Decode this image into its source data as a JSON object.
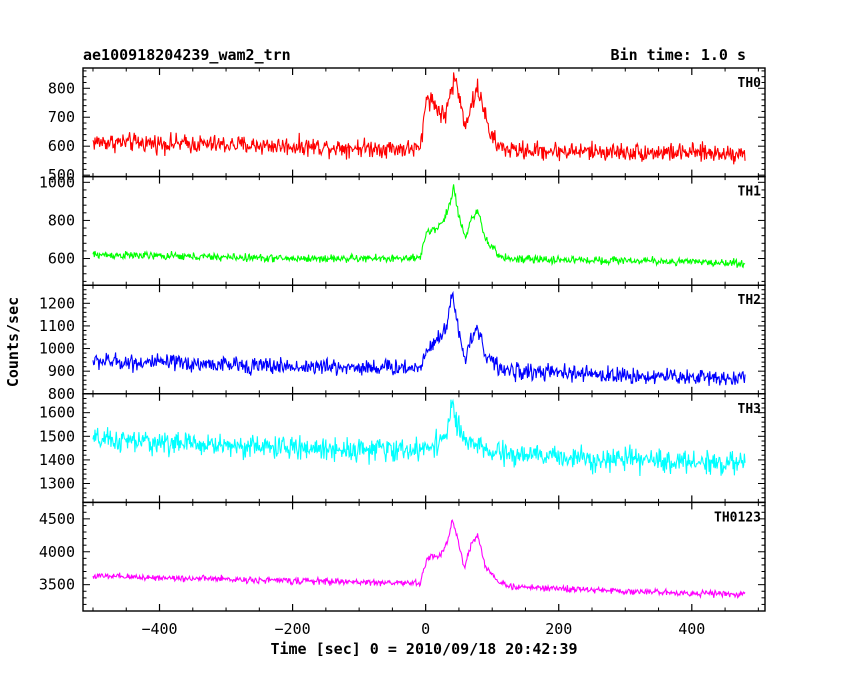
{
  "chart_data": {
    "type": "line",
    "title": "ae100918204239_wam2_trn",
    "bin_time_label": "Bin time: 1.0 s",
    "xlabel": "Time [sec] 0 = 2010/09/18 20:42:39",
    "ylabel": "Counts/sec",
    "xlim": [
      -515,
      510
    ],
    "xticks": [
      -400,
      -200,
      0,
      200,
      400
    ],
    "grid": false,
    "x": {
      "start": -500,
      "end": 480,
      "step": 1
    },
    "panels": [
      {
        "name": "TH0",
        "color": "#ff0000",
        "ylim": [
          495,
          870
        ],
        "yticks": [
          500,
          600,
          700,
          800
        ],
        "ytick_labels": [
          "500",
          "600",
          "700",
          "800"
        ],
        "level_points": [
          [
            -500,
            615
          ],
          [
            -200,
            600
          ],
          [
            0,
            590
          ],
          [
            300,
            580
          ],
          [
            480,
            575
          ]
        ],
        "noise": 28,
        "flare_points": [
          [
            -8,
            0
          ],
          [
            2,
            190
          ],
          [
            15,
            150
          ],
          [
            28,
            110
          ],
          [
            38,
            200
          ],
          [
            44,
            250
          ],
          [
            52,
            160
          ],
          [
            60,
            90
          ],
          [
            68,
            150
          ],
          [
            78,
            210
          ],
          [
            86,
            160
          ],
          [
            95,
            60
          ],
          [
            110,
            12
          ],
          [
            130,
            0
          ]
        ]
      },
      {
        "name": "TH1",
        "color": "#00ff00",
        "ylim": [
          460,
          1030
        ],
        "yticks": [
          600,
          800,
          1000
        ],
        "ytick_labels": [
          "600",
          "800",
          "1000"
        ],
        "level_points": [
          [
            -500,
            620
          ],
          [
            -200,
            600
          ],
          [
            0,
            600
          ],
          [
            300,
            590
          ],
          [
            480,
            575
          ]
        ],
        "noise": 18,
        "flare_points": [
          [
            -8,
            0
          ],
          [
            2,
            150
          ],
          [
            15,
            150
          ],
          [
            28,
            210
          ],
          [
            36,
            280
          ],
          [
            42,
            380
          ],
          [
            50,
            220
          ],
          [
            60,
            120
          ],
          [
            70,
            220
          ],
          [
            78,
            250
          ],
          [
            90,
            100
          ],
          [
            110,
            20
          ],
          [
            130,
            0
          ]
        ]
      },
      {
        "name": "TH2",
        "color": "#0000ff",
        "ylim": [
          800,
          1280
        ],
        "yticks": [
          800,
          900,
          1000,
          1100,
          1200
        ],
        "ytick_labels": [
          "800",
          "900",
          "1000",
          "1100",
          "1200"
        ],
        "level_points": [
          [
            -500,
            945
          ],
          [
            -200,
            920
          ],
          [
            0,
            915
          ],
          [
            300,
            880
          ],
          [
            480,
            870
          ]
        ],
        "noise": 32,
        "flare_points": [
          [
            -8,
            0
          ],
          [
            2,
            90
          ],
          [
            20,
            130
          ],
          [
            32,
            200
          ],
          [
            40,
            340
          ],
          [
            48,
            180
          ],
          [
            58,
            60
          ],
          [
            68,
            130
          ],
          [
            78,
            190
          ],
          [
            90,
            70
          ],
          [
            110,
            10
          ],
          [
            130,
            0
          ]
        ]
      },
      {
        "name": "TH3",
        "color": "#00ffff",
        "ylim": [
          1220,
          1680
        ],
        "yticks": [
          1300,
          1400,
          1500,
          1600
        ],
        "ytick_labels": [
          "1300",
          "1400",
          "1500",
          "1600"
        ],
        "level_points": [
          [
            -500,
            1485
          ],
          [
            -200,
            1450
          ],
          [
            0,
            1440
          ],
          [
            300,
            1400
          ],
          [
            480,
            1385
          ]
        ],
        "noise": 42,
        "flare_points": [
          [
            -5,
            0
          ],
          [
            10,
            30
          ],
          [
            30,
            60
          ],
          [
            40,
            200
          ],
          [
            47,
            120
          ],
          [
            58,
            40
          ],
          [
            72,
            40
          ],
          [
            90,
            10
          ],
          [
            110,
            0
          ]
        ]
      },
      {
        "name": "TH0123",
        "color": "#ff00ff",
        "ylim": [
          3100,
          4750
        ],
        "yticks": [
          3500,
          4000,
          4500
        ],
        "ytick_labels": [
          "3500",
          "4000",
          "4500"
        ],
        "level_points": [
          [
            -500,
            3630
          ],
          [
            -200,
            3560
          ],
          [
            0,
            3520
          ],
          [
            300,
            3400
          ],
          [
            480,
            3350
          ]
        ],
        "noise": 42,
        "flare_points": [
          [
            -8,
            0
          ],
          [
            2,
            390
          ],
          [
            20,
            420
          ],
          [
            32,
            600
          ],
          [
            40,
            1000
          ],
          [
            48,
            700
          ],
          [
            58,
            250
          ],
          [
            68,
            620
          ],
          [
            78,
            750
          ],
          [
            90,
            300
          ],
          [
            110,
            60
          ],
          [
            130,
            0
          ]
        ]
      }
    ]
  }
}
